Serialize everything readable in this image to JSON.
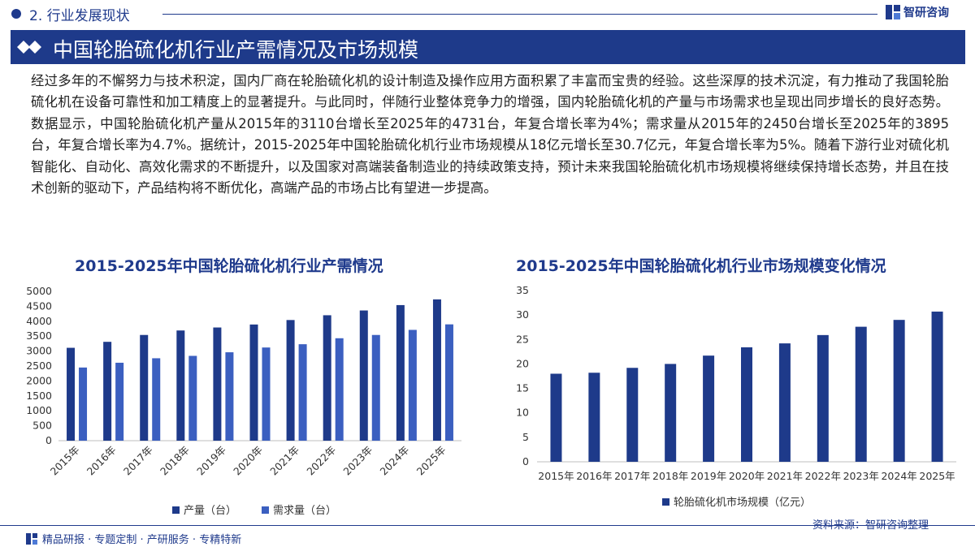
{
  "header": {
    "section": "2. 行业发展现状",
    "logo_text": "智研咨询"
  },
  "title": "中国轮胎硫化机行业产需情况及市场规模",
  "paragraph": "经过多年的不懈努力与技术积淀，国内厂商在轮胎硫化机的设计制造及操作应用方面积累了丰富而宝贵的经验。这些深厚的技术沉淀，有力推动了我国轮胎硫化机在设备可靠性和加工精度上的显著提升。与此同时，伴随行业整体竞争力的增强，国内轮胎硫化机的产量与市场需求也呈现出同步增长的良好态势。数据显示，中国轮胎硫化机产量从2015年的3110台增长至2025年的4731台，年复合增长率为4%；需求量从2015年的2450台增长至2025年的3895台，年复合增长率为4.7%。据统计，2015-2025年中国轮胎硫化机行业市场规模从18亿元增长至30.7亿元，年复合增长率为5%。随着下游行业对硫化机智能化、自动化、高效化需求的不断提升，以及国家对高端装备制造业的持续政策支持，预计未来我国轮胎硫化机市场规模将继续保持增长态势，并且在技术创新的驱动下，产品结构将不断优化，高端产品的市场占比有望进一步提高。",
  "chart_data": [
    {
      "type": "bar",
      "title": "2015-2025年中国轮胎硫化机行业产需情况",
      "categories": [
        "2015年",
        "2016年",
        "2017年",
        "2018年",
        "2019年",
        "2020年",
        "2021年",
        "2022年",
        "2023年",
        "2024年",
        "2025年"
      ],
      "series": [
        {
          "name": "产量（台）",
          "color": "#1e3a8a",
          "values": [
            3110,
            3310,
            3540,
            3690,
            3790,
            3890,
            4040,
            4200,
            4360,
            4540,
            4731
          ]
        },
        {
          "name": "需求量（台）",
          "color": "#3b5fc0",
          "values": [
            2450,
            2610,
            2760,
            2840,
            2960,
            3120,
            3230,
            3430,
            3540,
            3710,
            3895
          ]
        }
      ],
      "ylim": [
        0,
        5000
      ],
      "yticks": [
        0,
        500,
        1000,
        1500,
        2000,
        2500,
        3000,
        3500,
        4000,
        4500,
        5000
      ],
      "legend": "bottom",
      "grid": false
    },
    {
      "type": "bar",
      "title": "2015-2025年中国轮胎硫化机行业市场规模变化情况",
      "categories": [
        "2015年",
        "2016年",
        "2017年",
        "2018年",
        "2019年",
        "2020年",
        "2021年",
        "2022年",
        "2023年",
        "2024年",
        "2025年"
      ],
      "series": [
        {
          "name": "轮胎硫化机市场规模（亿元）",
          "color": "#1e3a8a",
          "values": [
            18.0,
            18.2,
            19.2,
            20.0,
            21.7,
            23.4,
            24.2,
            25.9,
            27.6,
            29.0,
            30.7
          ]
        }
      ],
      "ylim": [
        0,
        35
      ],
      "yticks": [
        0,
        5,
        10,
        15,
        20,
        25,
        30,
        35
      ],
      "legend": "bottom",
      "grid": false
    }
  ],
  "source": "资料来源：智研咨询整理",
  "footer": "精品研报 · 专题定制 · 产研服务 · 专精特新"
}
